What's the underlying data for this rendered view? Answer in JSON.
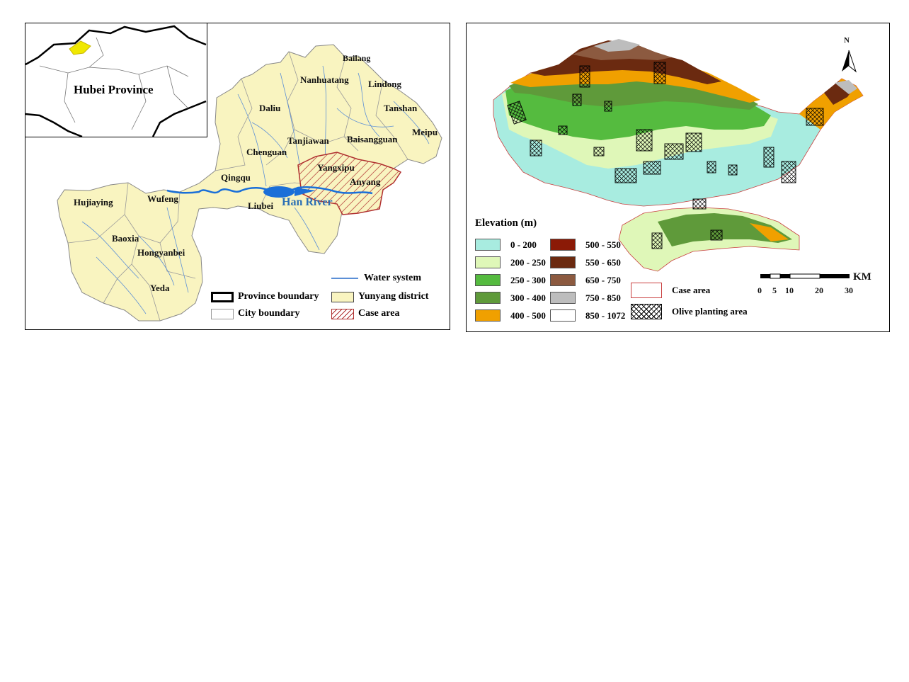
{
  "left_map": {
    "inset_title": "Hubei Province",
    "river_label": "Han River",
    "towns": [
      {
        "id": "bailang",
        "name": "Bailang"
      },
      {
        "id": "nanhuatang",
        "name": "Nanhuatang"
      },
      {
        "id": "lindong",
        "name": "Lindong"
      },
      {
        "id": "daliu",
        "name": "Daliu"
      },
      {
        "id": "tanshan",
        "name": "Tanshan"
      },
      {
        "id": "meipu",
        "name": "Meipu"
      },
      {
        "id": "tanjiawan",
        "name": "Tanjiawan"
      },
      {
        "id": "baisanggguan",
        "name": "Baisangguan"
      },
      {
        "id": "chenguan",
        "name": "Chenguan"
      },
      {
        "id": "yangxipu",
        "name": "Yangxipu"
      },
      {
        "id": "qingqu",
        "name": "Qingqu"
      },
      {
        "id": "anyang",
        "name": "Anyang"
      },
      {
        "id": "liubei",
        "name": "Liubei"
      },
      {
        "id": "hujiaying",
        "name": "Hujiaying"
      },
      {
        "id": "wufeng",
        "name": "Wufeng"
      },
      {
        "id": "baoxia",
        "name": "Baoxia"
      },
      {
        "id": "hongyanbei",
        "name": "Hongyanbei"
      },
      {
        "id": "yeda",
        "name": "Yeda"
      }
    ],
    "legend": {
      "water_system": "Water system",
      "province_boundary": "Province boundary",
      "yunyang_district": "Yunyang district",
      "city_boundary": "City boundary",
      "case_area": "Case area"
    }
  },
  "right_map": {
    "north_label": "N",
    "elevation_title": "Elevation (m)",
    "elevation_classes": [
      {
        "range": "0 - 200",
        "color": "#a8ece0"
      },
      {
        "range": "200 - 250",
        "color": "#dff7b8"
      },
      {
        "range": "250 - 300",
        "color": "#55bb3f"
      },
      {
        "range": "300 - 400",
        "color": "#5f9a3a"
      },
      {
        "range": "400 - 500",
        "color": "#f0a000"
      },
      {
        "range": "500 - 550",
        "color": "#8b1a06"
      },
      {
        "range": "550 - 650",
        "color": "#6b2a10"
      },
      {
        "range": "650 - 750",
        "color": "#8c5a40"
      },
      {
        "range": "750 - 850",
        "color": "#bdbdbd"
      },
      {
        "range": "850 - 1072",
        "color": "#ffffff"
      }
    ],
    "legend": {
      "case_area": "Case area",
      "olive_area": "Olive planting area"
    },
    "scale": {
      "unit": "KM",
      "ticks": [
        "0",
        "5",
        "10",
        "20",
        "30"
      ]
    }
  },
  "colors": {
    "district_fill": "#f9f4c0",
    "water": "#1a6fd8",
    "province_highlight": "#f0e800",
    "case_hatch": "#b03030"
  }
}
